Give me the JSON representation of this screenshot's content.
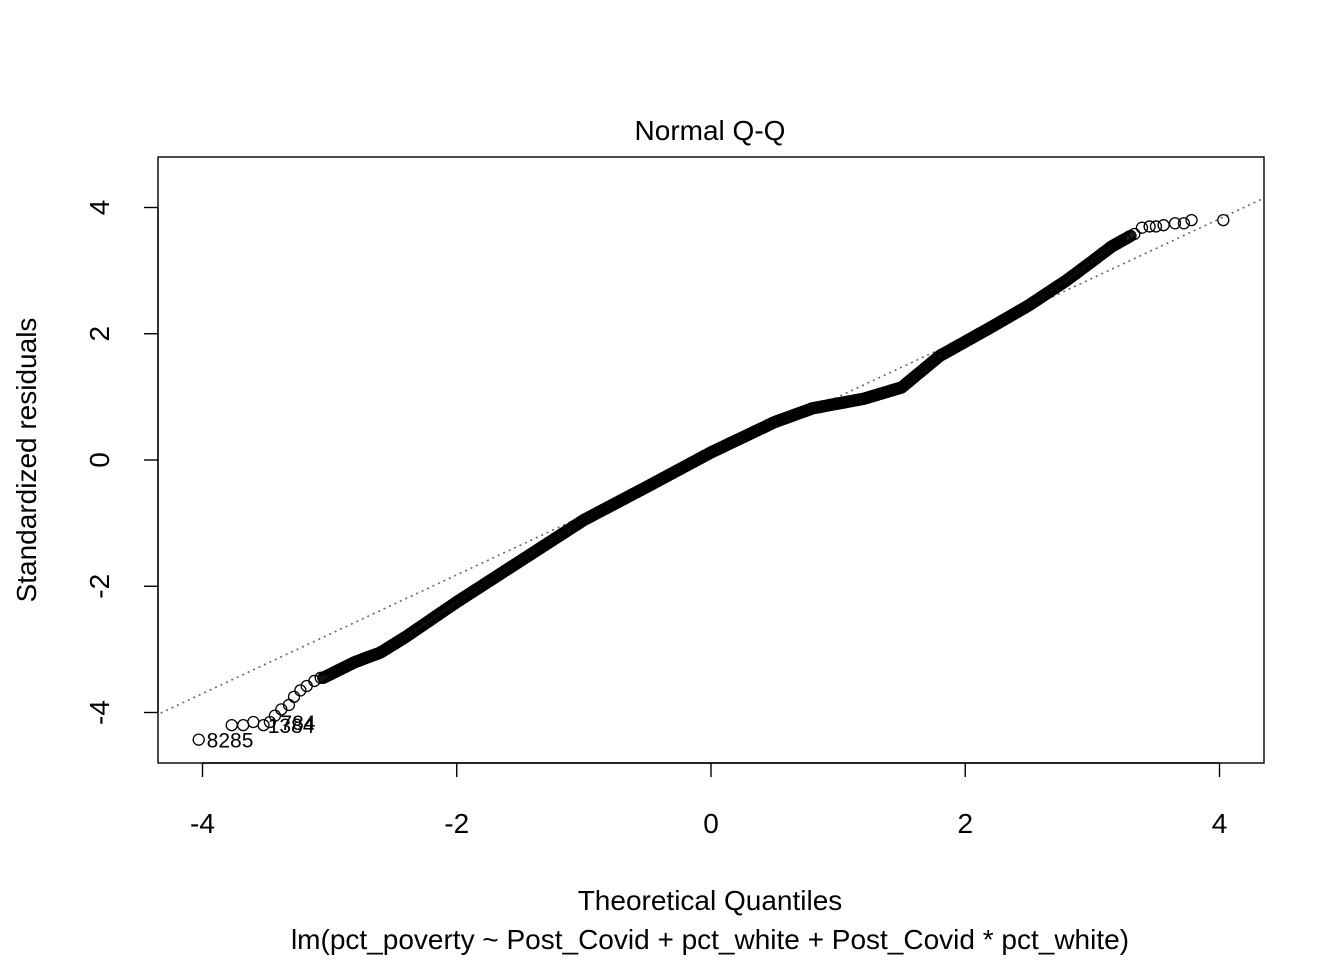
{
  "chart_data": {
    "type": "scatter",
    "title": "Normal Q-Q",
    "xlabel": "Theoretical Quantiles",
    "ylabel": "Standardized residuals",
    "subtitle": "lm(pct_poverty ~ Post_Covid + pct_white + Post_Covid * pct_white)",
    "xlim": [
      -4.35,
      4.35
    ],
    "ylim": [
      -4.8,
      4.8
    ],
    "x_ticks": [
      -4,
      -2,
      0,
      2,
      4
    ],
    "x_tick_labels": [
      "-4",
      "-2",
      "0",
      "2",
      "4"
    ],
    "y_ticks": [
      -4,
      -2,
      0,
      2,
      4
    ],
    "y_tick_labels": [
      "-4",
      "-2",
      "0",
      "2",
      "4"
    ],
    "grid": false,
    "reference_line": {
      "intercept": 0.06,
      "slope": 0.94,
      "style": "dotted",
      "color": "#666666"
    },
    "curve": [
      [
        -3.05,
        -3.45
      ],
      [
        -2.8,
        -3.2
      ],
      [
        -2.6,
        -3.05
      ],
      [
        -2.4,
        -2.8
      ],
      [
        -2.0,
        -2.25
      ],
      [
        -1.5,
        -1.6
      ],
      [
        -1.0,
        -0.95
      ],
      [
        -0.5,
        -0.42
      ],
      [
        0.0,
        0.12
      ],
      [
        0.5,
        0.6
      ],
      [
        0.8,
        0.82
      ],
      [
        1.2,
        0.97
      ],
      [
        1.5,
        1.15
      ],
      [
        1.8,
        1.65
      ],
      [
        2.2,
        2.1
      ],
      [
        2.5,
        2.45
      ],
      [
        2.8,
        2.85
      ],
      [
        3.0,
        3.15
      ],
      [
        3.15,
        3.38
      ],
      [
        3.3,
        3.55
      ]
    ],
    "tail_points_low": [
      [
        -4.03,
        -4.43
      ],
      [
        -3.77,
        -4.2
      ],
      [
        -3.68,
        -4.2
      ],
      [
        -3.6,
        -4.15
      ],
      [
        -3.52,
        -4.2
      ],
      [
        -3.47,
        -4.15
      ],
      [
        -3.43,
        -4.05
      ],
      [
        -3.38,
        -3.95
      ],
      [
        -3.32,
        -3.88
      ],
      [
        -3.28,
        -3.75
      ],
      [
        -3.23,
        -3.65
      ],
      [
        -3.18,
        -3.58
      ],
      [
        -3.12,
        -3.5
      ],
      [
        -3.07,
        -3.45
      ]
    ],
    "tail_points_high": [
      [
        3.33,
        3.58
      ],
      [
        3.39,
        3.68
      ],
      [
        3.45,
        3.7
      ],
      [
        3.5,
        3.7
      ],
      [
        3.56,
        3.72
      ],
      [
        3.65,
        3.75
      ],
      [
        3.72,
        3.75
      ],
      [
        3.78,
        3.8
      ],
      [
        4.03,
        3.8
      ]
    ],
    "point_labels": [
      {
        "text": "8285",
        "x": -4.03,
        "y": -4.43
      },
      {
        "text": "1384",
        "x": -3.55,
        "y": -4.2
      },
      {
        "text": "784",
        "x": -3.45,
        "y": -4.15
      }
    ]
  }
}
